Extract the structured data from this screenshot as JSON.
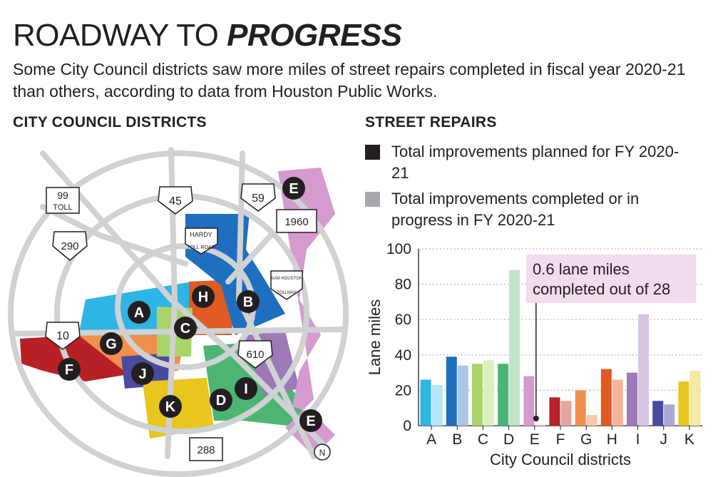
{
  "title": {
    "part1": "ROADWAY TO ",
    "part2": "PROGRESS"
  },
  "subtitle": "Some City Council districts saw more miles of street repairs completed in fiscal year 2020-21 than others, according to data from Houston Public Works.",
  "map": {
    "heading": "CITY COUNCIL DISTRICTS",
    "shields": {
      "toll99": [
        "99",
        "TOLL"
      ],
      "us290": "290",
      "i45": "45",
      "us59": "59",
      "fm1960": "1960",
      "hardy": [
        "HARDY",
        "TOLL ROAD"
      ],
      "samhouston": [
        "SAM HOUSTON",
        "TOLLWAY"
      ],
      "i10": "10",
      "i610": "610",
      "sh288": "288"
    },
    "north": "N",
    "district_colors": {
      "A": "#2fb4e6",
      "B": "#1e6fc0",
      "C": "#a8d46a",
      "D": "#4cb573",
      "E": "#d59bcf",
      "F": "#b72025",
      "G": "#f18f4c",
      "H": "#e05a24",
      "I": "#9d79b8",
      "J": "#4a4aa0",
      "K": "#e8c51f"
    }
  },
  "chart_section": {
    "heading": "STREET REPAIRS",
    "legend": [
      {
        "label": "Total improvements planned for FY 2020-21",
        "color": "#231f20"
      },
      {
        "label": "Total improvements completed or in progress in FY 2020-21",
        "color": "#a7a9ac"
      }
    ]
  },
  "chart_data": {
    "type": "bar",
    "categories": [
      "A",
      "B",
      "C",
      "D",
      "E",
      "F",
      "G",
      "H",
      "I",
      "J",
      "K"
    ],
    "series": [
      {
        "name": "Total improvements planned for FY 2020-21",
        "values": [
          26,
          39,
          35,
          35,
          28,
          16,
          20,
          32,
          30,
          14,
          25
        ]
      },
      {
        "name": "Total improvements completed or in progress in FY 2020-21",
        "values": [
          23,
          34,
          37,
          88,
          0.6,
          14,
          6,
          26,
          63,
          12,
          31
        ]
      }
    ],
    "colors_planned": [
      "#2fb4e6",
      "#1e6fc0",
      "#a8d46a",
      "#4cb573",
      "#d59bcf",
      "#b72025",
      "#f18f4c",
      "#e05a24",
      "#9d79b8",
      "#4a4aa0",
      "#e8c51f"
    ],
    "colors_completed": [
      "#b3e4f7",
      "#a9c5e8",
      "#dcedc0",
      "#bfe4c9",
      "#f1dbef",
      "#e2a59f",
      "#f9c9a5",
      "#f5b49a",
      "#d6c5e2",
      "#a9a9d6",
      "#f6e7a6"
    ],
    "ylim": [
      0,
      100
    ],
    "yticks": [
      0,
      20,
      40,
      60,
      80,
      100
    ],
    "xlabel": "City Council districts",
    "ylabel": "Lane miles",
    "grid": "dotted horizontal",
    "annotation": {
      "category": "E",
      "lines": [
        "0.6 lane miles",
        "completed out of 28"
      ],
      "bg": "#f1dbef"
    }
  }
}
